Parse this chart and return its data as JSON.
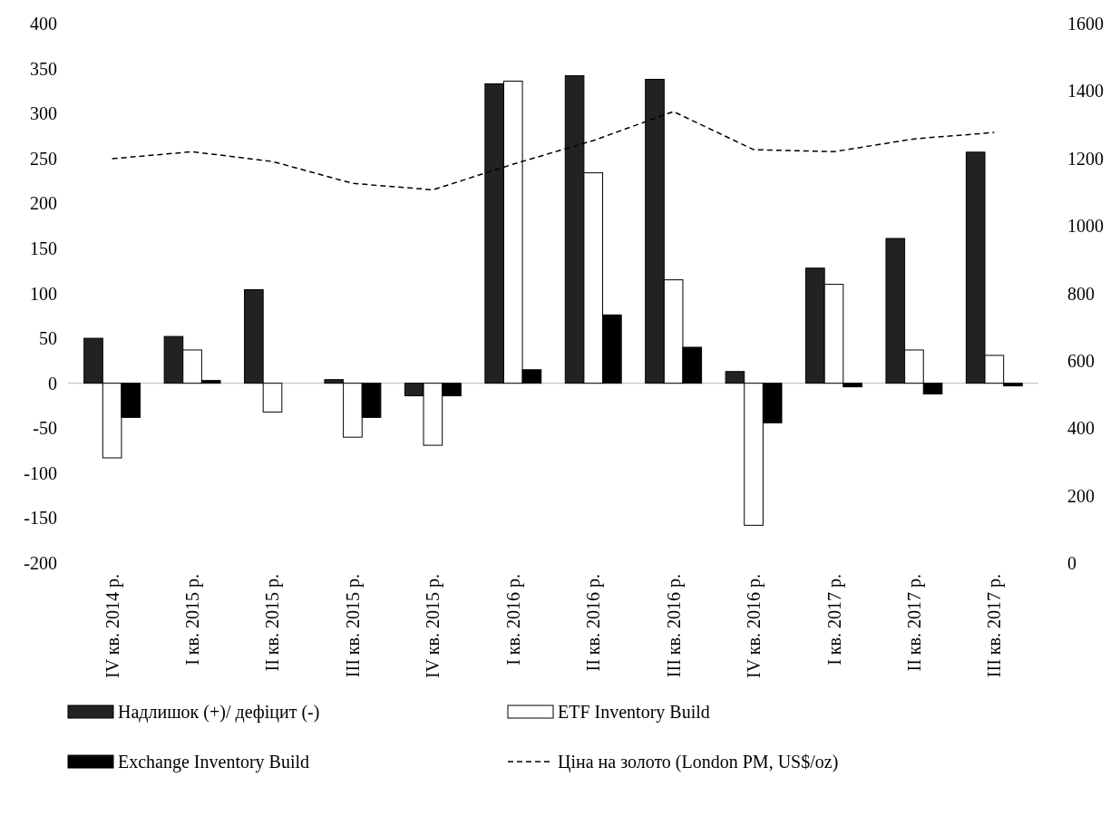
{
  "chart_data": {
    "type": "bar",
    "categories": [
      "IV кв. 2014 р.",
      "I кв. 2015 р.",
      "II кв. 2015 р.",
      "III кв. 2015 р.",
      "IV кв. 2015 р.",
      "I кв. 2016 р.",
      "II кв. 2016 р.",
      "III кв. 2016 р.",
      "IV кв. 2016 р.",
      "I кв. 2017 р.",
      "II кв. 2017 р.",
      "III кв. 2017 р."
    ],
    "series": [
      {
        "name": "Надлишок (+)/ дефіцит (-)",
        "color": "#222222",
        "values": [
          50,
          52,
          104,
          4,
          -14,
          333,
          342,
          338,
          13,
          128,
          161,
          257
        ]
      },
      {
        "name": "ETF Inventory Build",
        "color": "#ffffff",
        "values": [
          -83,
          37,
          -32,
          -60,
          -69,
          336,
          234,
          115,
          -158,
          110,
          37,
          31
        ]
      },
      {
        "name": "Exchange Inventory Build",
        "color": "#000000",
        "values": [
          -38,
          3,
          0,
          -38,
          -14,
          15,
          76,
          40,
          -44,
          -4,
          -12,
          -3
        ]
      },
      {
        "name": "Ціна на золото (London PM, US$/oz)",
        "type": "line",
        "axis": "y2",
        "color": "#000000",
        "values": [
          1199,
          1220,
          1191,
          1126,
          1107,
          1183,
          1253,
          1339,
          1226,
          1220,
          1258,
          1277
        ]
      }
    ],
    "ylim": [
      -200,
      400
    ],
    "yticks": [
      -200,
      -150,
      -100,
      -50,
      0,
      50,
      100,
      150,
      200,
      250,
      300,
      350,
      400
    ],
    "y2lim": [
      0,
      1600
    ],
    "y2ticks": [
      0,
      200,
      400,
      600,
      800,
      1000,
      1200,
      1400,
      1600
    ],
    "legend": "bottom",
    "line_style": "dashed"
  }
}
